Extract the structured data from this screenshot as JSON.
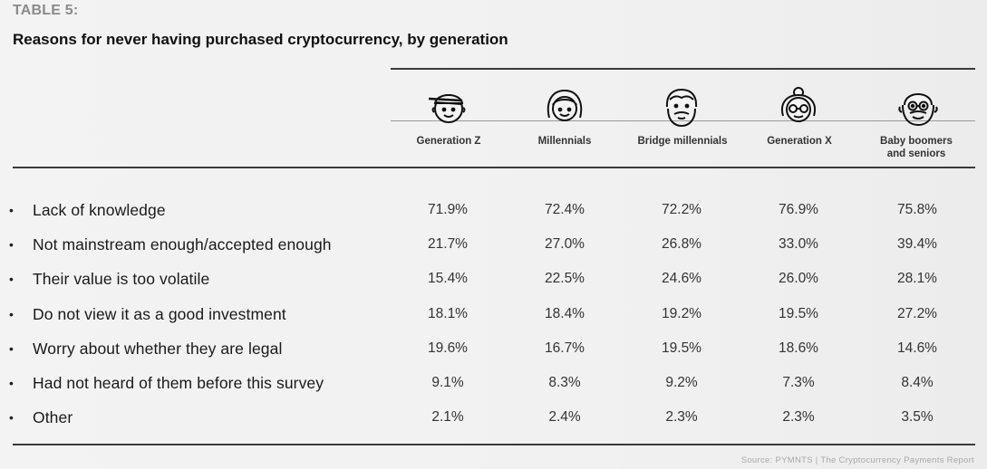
{
  "table_label": "TABLE 5:",
  "title": "Reasons for never having purchased cryptocurrency, by generation",
  "columns": [
    {
      "name": "Generation Z",
      "icon": "gen-z-avatar-icon"
    },
    {
      "name": "Millennials",
      "icon": "millennial-avatar-icon"
    },
    {
      "name": "Bridge millennials",
      "icon": "bridge-millennial-avatar-icon"
    },
    {
      "name": "Generation X",
      "icon": "gen-x-avatar-icon"
    },
    {
      "name": "Baby boomers and seniors",
      "line1": "Baby boomers",
      "line2": "and seniors",
      "icon": "boomer-avatar-icon"
    }
  ],
  "rows": [
    {
      "bullet": "•",
      "label": "Lack of knowledge",
      "values": [
        "71.9%",
        "72.4%",
        "72.2%",
        "76.9%",
        "75.8%"
      ]
    },
    {
      "bullet": "•",
      "label": "Not mainstream enough/accepted enough",
      "values": [
        "21.7%",
        "27.0%",
        "26.8%",
        "33.0%",
        "39.4%"
      ]
    },
    {
      "bullet": "•",
      "label": "Their value is too volatile",
      "values": [
        "15.4%",
        "22.5%",
        "24.6%",
        "26.0%",
        "28.1%"
      ]
    },
    {
      "bullet": "•",
      "label": "Do not view it as a good investment",
      "values": [
        "18.1%",
        "18.4%",
        "19.2%",
        "19.5%",
        "27.2%"
      ]
    },
    {
      "bullet": "•",
      "label": "Worry about whether they are legal",
      "values": [
        "19.6%",
        "16.7%",
        "19.5%",
        "18.6%",
        "14.6%"
      ]
    },
    {
      "bullet": "•",
      "label": "Had not heard of them before this survey",
      "values": [
        "9.1%",
        "8.3%",
        "9.2%",
        "7.3%",
        "8.4%"
      ]
    },
    {
      "bullet": "•",
      "label": "Other",
      "values": [
        "2.1%",
        "2.4%",
        "2.3%",
        "2.3%",
        "3.5%"
      ]
    }
  ],
  "source": "Source: PYMNTS | The Cryptocurrency Payments Report",
  "chart_data": {
    "type": "table",
    "title": "Reasons for never having purchased cryptocurrency, by generation",
    "categories": [
      "Lack of knowledge",
      "Not mainstream enough/accepted enough",
      "Their value is too volatile",
      "Do not view it as a good investment",
      "Worry about whether they are legal",
      "Had not heard of them before this survey",
      "Other"
    ],
    "series": [
      {
        "name": "Generation Z",
        "values": [
          71.9,
          21.7,
          15.4,
          18.1,
          19.6,
          9.1,
          2.1
        ]
      },
      {
        "name": "Millennials",
        "values": [
          72.4,
          27.0,
          22.5,
          18.4,
          16.7,
          8.3,
          2.4
        ]
      },
      {
        "name": "Bridge millennials",
        "values": [
          72.2,
          26.8,
          24.6,
          19.2,
          19.5,
          9.2,
          2.3
        ]
      },
      {
        "name": "Generation X",
        "values": [
          76.9,
          33.0,
          26.0,
          19.5,
          18.6,
          7.3,
          2.3
        ]
      },
      {
        "name": "Baby boomers and seniors",
        "values": [
          75.8,
          39.4,
          28.1,
          27.2,
          14.6,
          8.4,
          3.5
        ]
      }
    ]
  }
}
